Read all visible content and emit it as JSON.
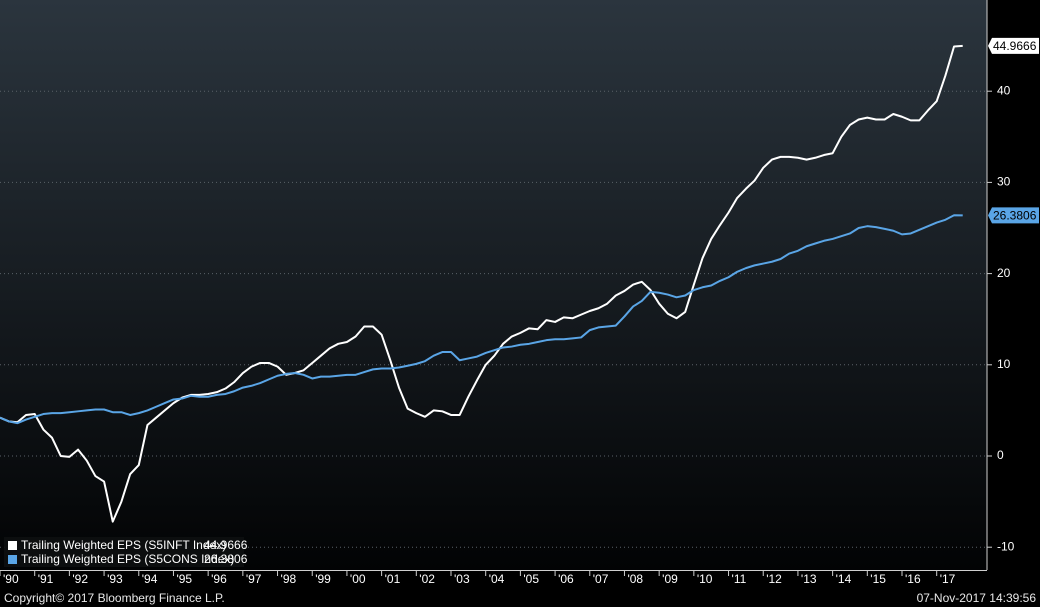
{
  "chart_data": {
    "type": "line",
    "x": [
      1990,
      1990.25,
      1990.5,
      1990.75,
      1991,
      1991.25,
      1991.5,
      1991.75,
      1992,
      1992.25,
      1992.5,
      1992.75,
      1993,
      1993.25,
      1993.5,
      1993.75,
      1994,
      1994.25,
      1994.5,
      1994.75,
      1995,
      1995.25,
      1995.5,
      1995.75,
      1996,
      1996.25,
      1996.5,
      1996.75,
      1997,
      1997.25,
      1997.5,
      1997.75,
      1998,
      1998.25,
      1998.5,
      1998.75,
      1999,
      1999.25,
      1999.5,
      1999.75,
      2000,
      2000.25,
      2000.5,
      2000.75,
      2001,
      2001.25,
      2001.5,
      2001.75,
      2002,
      2002.25,
      2002.5,
      2002.75,
      2003,
      2003.25,
      2003.5,
      2003.75,
      2004,
      2004.25,
      2004.5,
      2004.75,
      2005,
      2005.25,
      2005.5,
      2005.75,
      2006,
      2006.25,
      2006.5,
      2006.75,
      2007,
      2007.25,
      2007.5,
      2007.75,
      2008,
      2008.25,
      2008.5,
      2008.75,
      2009,
      2009.25,
      2009.5,
      2009.75,
      2010,
      2010.25,
      2010.5,
      2010.75,
      2011,
      2011.25,
      2011.5,
      2011.75,
      2012,
      2012.25,
      2012.5,
      2012.75,
      2013,
      2013.25,
      2013.5,
      2013.75,
      2014,
      2014.25,
      2014.5,
      2014.75,
      2015,
      2015.25,
      2015.5,
      2015.75,
      2016,
      2016.25,
      2016.5,
      2016.75,
      2017,
      2017.25,
      2017.5,
      2017.75
    ],
    "series": [
      {
        "name": "Trailing Weighted EPS (S5INFT Index)",
        "color": "#ffffff",
        "values": [
          4.2,
          3.8,
          3.7,
          4.5,
          4.6,
          2.9,
          2.0,
          0.0,
          -0.1,
          0.7,
          -0.5,
          -2.2,
          -2.8,
          -7.2,
          -5.0,
          -2.0,
          -1.0,
          3.4,
          4.2,
          5.0,
          5.8,
          6.4,
          6.7,
          6.7,
          6.8,
          7.0,
          7.4,
          8.1,
          9.1,
          9.8,
          10.2,
          10.2,
          9.8,
          8.9,
          9.1,
          9.4,
          10.2,
          11.0,
          11.8,
          12.3,
          12.5,
          13.1,
          14.2,
          14.2,
          13.3,
          10.5,
          7.5,
          5.2,
          4.7,
          4.3,
          5.0,
          4.9,
          4.5,
          4.5,
          6.5,
          8.3,
          10.0,
          11.0,
          12.3,
          13.1,
          13.5,
          14.0,
          13.9,
          14.9,
          14.7,
          15.2,
          15.1,
          15.5,
          15.9,
          16.2,
          16.7,
          17.6,
          18.1,
          18.8,
          19.1,
          18.2,
          16.7,
          15.6,
          15.1,
          15.8,
          18.8,
          21.7,
          23.8,
          25.3,
          26.7,
          28.3,
          29.3,
          30.2,
          31.6,
          32.5,
          32.8,
          32.8,
          32.7,
          32.5,
          32.7,
          33.0,
          33.2,
          35.0,
          36.3,
          36.9,
          37.1,
          36.9,
          36.9,
          37.5,
          37.2,
          36.8,
          36.8,
          37.9,
          38.9,
          41.7,
          44.9,
          44.9666
        ]
      },
      {
        "name": "Trailing Weighted EPS (S5CONS Index)",
        "color": "#5aa5e6",
        "values": [
          4.2,
          3.8,
          3.6,
          4.0,
          4.3,
          4.6,
          4.7,
          4.7,
          4.8,
          4.9,
          5.0,
          5.1,
          5.1,
          4.8,
          4.8,
          4.5,
          4.7,
          5.0,
          5.4,
          5.8,
          6.2,
          6.3,
          6.6,
          6.5,
          6.5,
          6.7,
          6.8,
          7.1,
          7.5,
          7.7,
          8.0,
          8.4,
          8.8,
          9.0,
          9.1,
          8.9,
          8.5,
          8.7,
          8.7,
          8.8,
          8.9,
          8.9,
          9.2,
          9.5,
          9.6,
          9.6,
          9.7,
          9.9,
          10.1,
          10.4,
          11.0,
          11.4,
          11.4,
          10.5,
          10.7,
          10.9,
          11.3,
          11.6,
          11.9,
          12.0,
          12.2,
          12.3,
          12.5,
          12.7,
          12.8,
          12.8,
          12.9,
          13.0,
          13.8,
          14.1,
          14.2,
          14.3,
          15.3,
          16.4,
          17.0,
          18.0,
          17.9,
          17.7,
          17.4,
          17.6,
          18.2,
          18.5,
          18.7,
          19.2,
          19.6,
          20.2,
          20.6,
          20.9,
          21.1,
          21.3,
          21.6,
          22.2,
          22.5,
          23.0,
          23.3,
          23.6,
          23.8,
          24.1,
          24.4,
          25.0,
          25.2,
          25.1,
          24.9,
          24.7,
          24.3,
          24.4,
          24.8,
          25.2,
          25.6,
          25.9,
          26.4,
          26.3806
        ]
      }
    ],
    "xlim": [
      1990,
      2018.45
    ],
    "xticks": [
      {
        "value": 1990,
        "label": "'90"
      },
      {
        "value": 1991,
        "label": "'91"
      },
      {
        "value": 1992,
        "label": "'92"
      },
      {
        "value": 1993,
        "label": "'93"
      },
      {
        "value": 1994,
        "label": "'94"
      },
      {
        "value": 1995,
        "label": "'95"
      },
      {
        "value": 1996,
        "label": "'96"
      },
      {
        "value": 1997,
        "label": "'97"
      },
      {
        "value": 1998,
        "label": "'98"
      },
      {
        "value": 1999,
        "label": "'99"
      },
      {
        "value": 2000,
        "label": "'00"
      },
      {
        "value": 2001,
        "label": "'01"
      },
      {
        "value": 2002,
        "label": "'02"
      },
      {
        "value": 2003,
        "label": "'03"
      },
      {
        "value": 2004,
        "label": "'04"
      },
      {
        "value": 2005,
        "label": "'05"
      },
      {
        "value": 2006,
        "label": "'06"
      },
      {
        "value": 2007,
        "label": "'07"
      },
      {
        "value": 2008,
        "label": "'08"
      },
      {
        "value": 2009,
        "label": "'09"
      },
      {
        "value": 2010,
        "label": "'10"
      },
      {
        "value": 2011,
        "label": "'11"
      },
      {
        "value": 2012,
        "label": "'12"
      },
      {
        "value": 2013,
        "label": "'13"
      },
      {
        "value": 2014,
        "label": "'14"
      },
      {
        "value": 2015,
        "label": "'15"
      },
      {
        "value": 2016,
        "label": "'16"
      },
      {
        "value": 2017,
        "label": "'17"
      }
    ],
    "ylim": [
      -12.5,
      50
    ],
    "yticks": [
      -10,
      0,
      10,
      20,
      30,
      40
    ],
    "grid": true,
    "legend": "bottom-left"
  },
  "footer": {
    "copyright": "Copyright© 2017 Bloomberg Finance L.P.",
    "timestamp": "07-Nov-2017 14:39:56"
  }
}
